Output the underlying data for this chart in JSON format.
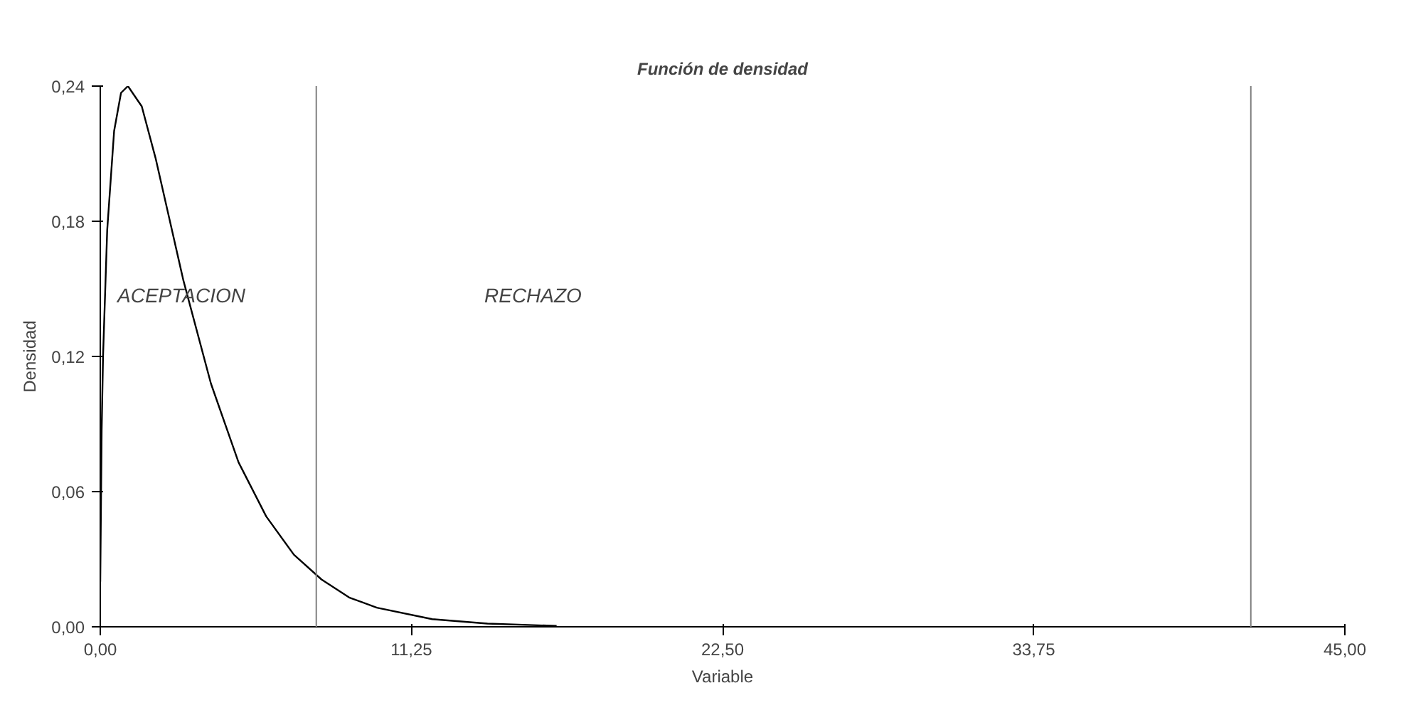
{
  "chart_data": {
    "type": "line",
    "title": "Función de densidad",
    "xlabel": "Variable",
    "ylabel": "Densidad",
    "x": [
      0,
      0.05,
      0.1,
      0.25,
      0.5,
      0.75,
      1,
      1.5,
      2,
      2.5,
      3,
      4,
      5,
      6,
      7,
      8,
      9,
      10,
      12,
      14,
      16.5
    ],
    "series": [
      {
        "color": "#000000",
        "values": [
          0.02,
          0.087,
          0.12,
          0.176,
          0.22,
          0.237,
          0.24,
          0.231,
          0.208,
          0.181,
          0.154,
          0.108,
          0.073,
          0.049,
          0.032,
          0.021,
          0.013,
          0.0085,
          0.0034,
          0.0014,
          0.0004
        ]
      }
    ],
    "xlim": [
      0,
      45
    ],
    "ylim": [
      0,
      0.24
    ],
    "xticks": [
      {
        "value": 0,
        "label": "0,00"
      },
      {
        "value": 11.25,
        "label": "11,25"
      },
      {
        "value": 22.5,
        "label": "22,50"
      },
      {
        "value": 33.75,
        "label": "33,75"
      },
      {
        "value": 45,
        "label": "45,00"
      }
    ],
    "yticks": [
      {
        "value": 0,
        "label": "0,00"
      },
      {
        "value": 0.06,
        "label": "0,06"
      },
      {
        "value": 0.12,
        "label": "0,12"
      },
      {
        "value": 0.18,
        "label": "0,18"
      },
      {
        "value": 0.24,
        "label": "0,24"
      }
    ],
    "ref_lines": [
      {
        "axis": "x",
        "value": 7.81,
        "color": "#808080"
      },
      {
        "axis": "x",
        "value": 41.6,
        "color": "#808080"
      }
    ],
    "annotations": [
      "ACEPTACION",
      "RECHAZO"
    ],
    "grid": false,
    "marker": "none",
    "line_style": "solid"
  }
}
